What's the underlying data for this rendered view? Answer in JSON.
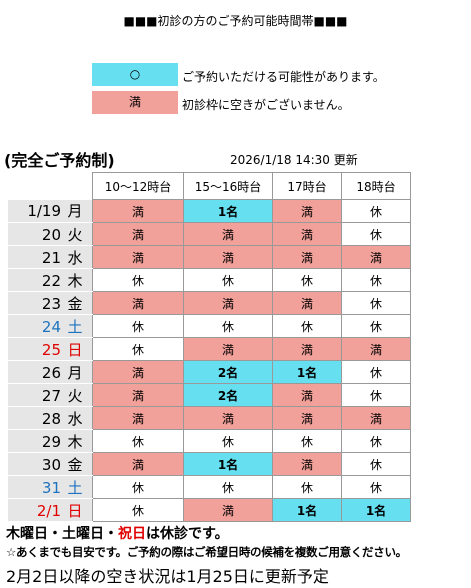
{
  "header": {
    "title": "■■■初診の方のご予約可能時間帯■■■"
  },
  "legend": [
    {
      "symbol": "○",
      "text": "ご予約いただける可能性があります。",
      "color": "#66e0f0"
    },
    {
      "symbol": "満",
      "text": "初診枠に空きがございません。",
      "color": "#f2a09a"
    }
  ],
  "subtitle": "(完全ご予約制)",
  "updated": "2026/1/18 14:30 更新",
  "table": {
    "columns": [
      "10～12時台",
      "15～16時台",
      "17時台",
      "18時台"
    ],
    "closed": "休",
    "rows": [
      {
        "date": "1/19",
        "day": "月",
        "color": "#000000",
        "cells": [
          "満",
          "1名",
          "満",
          "休"
        ]
      },
      {
        "date": "20",
        "day": "火",
        "color": "#000000",
        "cells": [
          "満",
          "満",
          "満",
          "休"
        ]
      },
      {
        "date": "21",
        "day": "水",
        "color": "#000000",
        "cells": [
          "満",
          "満",
          "満",
          "満"
        ]
      },
      {
        "date": "22",
        "day": "木",
        "color": "#000000",
        "cells": [
          "休",
          "休",
          "休",
          "休"
        ]
      },
      {
        "date": "23",
        "day": "金",
        "color": "#000000",
        "cells": [
          "満",
          "満",
          "満",
          "休"
        ]
      },
      {
        "date": "24",
        "day": "土",
        "color": "#1e73be",
        "cells": [
          "休",
          "休",
          "休",
          "休"
        ]
      },
      {
        "date": "25",
        "day": "日",
        "color": "#e00000",
        "cells": [
          "休",
          "満",
          "満",
          "満"
        ]
      },
      {
        "date": "26",
        "day": "月",
        "color": "#000000",
        "cells": [
          "満",
          "2名",
          "1名",
          "休"
        ]
      },
      {
        "date": "27",
        "day": "火",
        "color": "#000000",
        "cells": [
          "満",
          "2名",
          "満",
          "休"
        ]
      },
      {
        "date": "28",
        "day": "水",
        "color": "#000000",
        "cells": [
          "満",
          "満",
          "満",
          "満"
        ]
      },
      {
        "date": "29",
        "day": "木",
        "color": "#000000",
        "cells": [
          "休",
          "休",
          "休",
          "休"
        ]
      },
      {
        "date": "30",
        "day": "金",
        "color": "#000000",
        "cells": [
          "満",
          "1名",
          "満",
          "休"
        ]
      },
      {
        "date": "31",
        "day": "土",
        "color": "#1e73be",
        "cells": [
          "休",
          "休",
          "休",
          "休"
        ]
      },
      {
        "date": "2/1",
        "day": "日",
        "color": "#e00000",
        "cells": [
          "休",
          "満",
          "1名",
          "1名"
        ]
      }
    ]
  },
  "notes": {
    "closed_days": [
      {
        "text": "木曜日・土曜日・",
        "color": "#000000"
      },
      {
        "text": "祝日",
        "color": "#e00000"
      },
      {
        "text": "は休診です。",
        "color": "#000000"
      }
    ],
    "caution": "☆あくまでも目安です。ご予約の際はご希望日時の候補を複数ご用意ください。",
    "next_update": "2月2日以降の空き状況は1月25日に更新予定"
  }
}
